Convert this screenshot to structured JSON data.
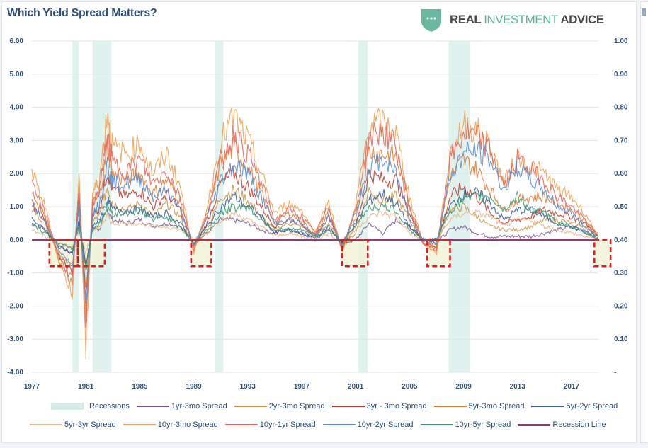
{
  "header": {
    "title": "Which Yield Spread Matters?",
    "logo": {
      "icon": "shield-dots-icon",
      "word1": "REAL ",
      "word2": "INVESTMENT",
      "word3": " ADVICE"
    }
  },
  "chart_data": {
    "type": "line",
    "title": "Which Yield Spread Matters?",
    "xlabel": "",
    "ylabel": "",
    "xlim": [
      1977,
      2019
    ],
    "ylim": [
      -4.0,
      6.0
    ],
    "y2lim": [
      0.0,
      1.0
    ],
    "grid": true,
    "legend_position": "bottom",
    "x_ticks": [
      "1977",
      "1981",
      "1985",
      "1989",
      "1993",
      "1997",
      "2001",
      "2005",
      "2009",
      "2013",
      "2017"
    ],
    "y_ticks": [
      "6.00",
      "5.00",
      "4.00",
      "3.00",
      "2.00",
      "1.00",
      "0.00",
      "-1.00",
      "-2.00",
      "-3.00",
      "-4.00"
    ],
    "y2_ticks": [
      "1.00",
      "0.90",
      "0.80",
      "0.70",
      "0.60",
      "0.50",
      "0.40",
      "0.30",
      "0.20",
      "0.10",
      "-"
    ],
    "recessions": [
      [
        1980.0,
        1980.5
      ],
      [
        1981.5,
        1982.9
      ],
      [
        1990.6,
        1991.2
      ],
      [
        2001.2,
        2001.9
      ],
      [
        2007.9,
        2009.5
      ]
    ],
    "inversion_highlights": [
      [
        1978.3,
        1980.4
      ],
      [
        1980.4,
        1982.4
      ],
      [
        1988.8,
        1990.3
      ],
      [
        2000.0,
        2001.9
      ],
      [
        2006.3,
        2008.0
      ],
      [
        2018.7,
        2019.9
      ]
    ],
    "x": [
      1977,
      1978,
      1979,
      1980,
      1980.5,
      1981,
      1981.5,
      1982,
      1982.6,
      1983,
      1984,
      1985,
      1986,
      1987,
      1988,
      1989,
      1990,
      1991,
      1992,
      1993,
      1994,
      1995,
      1996,
      1997,
      1998,
      1999,
      2000,
      2001,
      2002,
      2003,
      2004,
      2005,
      2006,
      2007,
      2008,
      2009,
      2010,
      2011,
      2012,
      2013,
      2014,
      2015,
      2016,
      2017,
      2018,
      2019
    ],
    "series": [
      {
        "name": "1yr-3mo Spread",
        "color": "#7a5a8e",
        "values": [
          0.5,
          0.3,
          -0.2,
          -0.4,
          0.6,
          -0.8,
          0.4,
          0.3,
          0.9,
          0.6,
          0.5,
          0.6,
          0.4,
          0.5,
          0.4,
          -0.1,
          0.2,
          0.6,
          0.6,
          0.5,
          0.3,
          0.2,
          0.3,
          0.2,
          0.1,
          0.3,
          -0.1,
          0.0,
          0.5,
          0.2,
          0.6,
          0.4,
          0.0,
          -0.1,
          0.3,
          0.4,
          0.2,
          0.1,
          0.1,
          0.1,
          0.1,
          0.2,
          0.3,
          0.4,
          0.3,
          0.1
        ]
      },
      {
        "name": "2yr-3mo Spread",
        "color": "#c8964a",
        "values": [
          0.9,
          0.5,
          -0.4,
          -0.8,
          1.0,
          -1.4,
          0.6,
          0.7,
          1.6,
          1.1,
          0.9,
          1.1,
          0.7,
          1.1,
          0.7,
          -0.2,
          0.3,
          1.3,
          1.5,
          1.2,
          0.7,
          0.3,
          0.5,
          0.4,
          0.1,
          0.5,
          -0.2,
          0.2,
          1.5,
          1.2,
          1.3,
          0.6,
          -0.1,
          -0.2,
          0.9,
          1.0,
          0.7,
          0.4,
          0.3,
          0.3,
          0.4,
          0.6,
          0.6,
          0.5,
          0.4,
          0.1
        ]
      },
      {
        "name": "3yr - 3mo Spread",
        "color": "#c0392b",
        "values": [
          1.1,
          0.6,
          -0.5,
          -1.0,
          1.3,
          -1.8,
          0.8,
          0.9,
          2.1,
          1.5,
          1.3,
          1.5,
          1.0,
          1.4,
          0.9,
          -0.2,
          0.5,
          1.7,
          2.0,
          1.6,
          1.0,
          0.4,
          0.6,
          0.5,
          0.1,
          0.7,
          -0.2,
          0.4,
          2.0,
          1.8,
          1.8,
          0.8,
          -0.1,
          -0.2,
          1.3,
          1.6,
          1.3,
          0.8,
          0.5,
          0.6,
          0.7,
          0.9,
          0.8,
          0.7,
          0.5,
          0.1
        ]
      },
      {
        "name": "5yr-3mo Spread",
        "color": "#e07b39",
        "values": [
          1.4,
          0.7,
          -0.6,
          -1.3,
          1.6,
          -2.3,
          1.1,
          1.3,
          2.8,
          2.0,
          1.8,
          2.0,
          1.4,
          1.8,
          1.2,
          -0.3,
          0.7,
          2.3,
          2.8,
          2.2,
          1.4,
          0.5,
          0.8,
          0.6,
          0.1,
          0.9,
          -0.3,
          0.7,
          2.7,
          2.6,
          2.5,
          1.0,
          -0.1,
          -0.3,
          1.9,
          2.4,
          2.1,
          1.5,
          0.9,
          1.2,
          1.3,
          1.3,
          1.1,
          0.9,
          0.6,
          0.1
        ]
      },
      {
        "name": "5yr-2yr Spread",
        "color": "#3a5f9a",
        "values": [
          0.6,
          0.3,
          -0.2,
          -0.4,
          0.6,
          -0.8,
          0.4,
          0.6,
          1.2,
          0.9,
          0.9,
          0.9,
          0.7,
          0.8,
          0.5,
          -0.1,
          0.4,
          1.0,
          1.3,
          1.0,
          0.7,
          0.2,
          0.3,
          0.2,
          0.0,
          0.4,
          -0.1,
          0.5,
          1.2,
          1.4,
          1.1,
          0.4,
          0.0,
          0.0,
          1.0,
          1.4,
          1.4,
          1.1,
          0.6,
          0.9,
          0.9,
          0.7,
          0.5,
          0.4,
          0.2,
          0.0
        ]
      },
      {
        "name": "5yr-3yr Spread",
        "color": "#e8b98a",
        "values": [
          0.3,
          0.1,
          -0.1,
          -0.2,
          0.3,
          -0.4,
          0.3,
          0.4,
          0.7,
          0.5,
          0.5,
          0.5,
          0.4,
          0.4,
          0.3,
          0.0,
          0.2,
          0.6,
          0.8,
          0.6,
          0.4,
          0.1,
          0.2,
          0.1,
          0.0,
          0.2,
          -0.1,
          0.3,
          0.7,
          0.8,
          0.7,
          0.2,
          0.0,
          0.0,
          0.6,
          0.8,
          0.8,
          0.7,
          0.4,
          0.6,
          0.6,
          0.4,
          0.3,
          0.2,
          0.1,
          0.0
        ]
      },
      {
        "name": "10yr-3mo Spread",
        "color": "#f0a050",
        "values": [
          2.0,
          1.0,
          -0.7,
          -1.6,
          2.0,
          -3.4,
          1.4,
          1.8,
          3.9,
          2.8,
          2.6,
          2.9,
          2.0,
          2.6,
          1.6,
          -0.4,
          1.0,
          3.0,
          3.7,
          3.0,
          2.0,
          0.8,
          1.1,
          0.9,
          0.2,
          1.2,
          -0.4,
          1.0,
          3.5,
          3.5,
          3.2,
          1.3,
          -0.1,
          -0.4,
          2.6,
          3.5,
          3.3,
          2.8,
          1.7,
          2.5,
          2.2,
          2.0,
          1.5,
          1.3,
          0.8,
          0.1
        ]
      },
      {
        "name": "10yr-1yr Spread",
        "color": "#e8665a",
        "values": [
          1.6,
          0.8,
          -0.5,
          -1.2,
          1.5,
          -2.6,
          1.1,
          1.5,
          3.1,
          2.3,
          2.1,
          2.4,
          1.7,
          2.1,
          1.3,
          -0.3,
          0.8,
          2.4,
          3.2,
          2.6,
          1.7,
          0.6,
          0.9,
          0.7,
          0.2,
          1.0,
          -0.3,
          0.9,
          3.1,
          3.3,
          2.8,
          1.0,
          -0.1,
          -0.3,
          2.4,
          3.2,
          3.1,
          2.7,
          1.6,
          2.4,
          2.1,
          1.8,
          1.3,
          1.0,
          0.6,
          0.1
        ]
      },
      {
        "name": "10yr-2yr Spread",
        "color": "#5b8fd4",
        "values": [
          1.1,
          0.5,
          -0.3,
          -0.8,
          1.0,
          -1.9,
          0.8,
          1.1,
          2.3,
          1.7,
          1.7,
          1.8,
          1.3,
          1.5,
          0.9,
          -0.2,
          0.7,
          1.8,
          2.3,
          2.0,
          1.3,
          0.5,
          0.6,
          0.5,
          0.1,
          0.7,
          -0.2,
          0.8,
          2.2,
          2.4,
          2.0,
          0.7,
          0.0,
          -0.1,
          1.9,
          2.6,
          2.7,
          2.4,
          1.5,
          2.2,
          1.8,
          1.5,
          1.0,
          0.8,
          0.4,
          0.1
        ]
      },
      {
        "name": "10yr-5yr Spread",
        "color": "#3a9a6e",
        "values": [
          0.5,
          0.2,
          -0.1,
          -0.3,
          0.4,
          -0.9,
          0.3,
          0.5,
          1.0,
          0.8,
          0.8,
          0.9,
          0.6,
          0.7,
          0.4,
          -0.1,
          0.3,
          0.8,
          1.0,
          1.0,
          0.6,
          0.3,
          0.3,
          0.3,
          0.1,
          0.3,
          -0.1,
          0.4,
          1.0,
          1.0,
          0.9,
          0.3,
          0.0,
          0.0,
          0.9,
          1.2,
          1.3,
          1.3,
          0.9,
          1.3,
          0.9,
          0.8,
          0.5,
          0.4,
          0.2,
          0.1
        ]
      }
    ],
    "recession_line": {
      "name": "Recession Line",
      "color": "#8e3a7f",
      "value": 0.0
    },
    "legend": [
      {
        "label": "Recessions",
        "type": "box",
        "color": "#d5ede8"
      },
      {
        "label": "1yr-3mo Spread",
        "type": "line",
        "color": "#7a5a8e"
      },
      {
        "label": "2yr-3mo Spread",
        "type": "line",
        "color": "#c8964a"
      },
      {
        "label": "3yr - 3mo Spread",
        "type": "line",
        "color": "#c0392b"
      },
      {
        "label": "5yr-3mo Spread",
        "type": "line",
        "color": "#e07b39"
      },
      {
        "label": "5yr-2yr Spread",
        "type": "line",
        "color": "#3a5f9a"
      },
      {
        "label": "5yr-3yr Spread",
        "type": "line",
        "color": "#e8b98a"
      },
      {
        "label": "10yr-3mo Spread",
        "type": "line",
        "color": "#f0a050"
      },
      {
        "label": "10yr-1yr Spread",
        "type": "line",
        "color": "#e8665a"
      },
      {
        "label": "10yr-2yr Spread",
        "type": "line",
        "color": "#5b8fd4"
      },
      {
        "label": "10yr-5yr Spread",
        "type": "line",
        "color": "#3a9a6e"
      },
      {
        "label": "Recession Line",
        "type": "thick",
        "color": "#8e3a7f"
      }
    ]
  }
}
